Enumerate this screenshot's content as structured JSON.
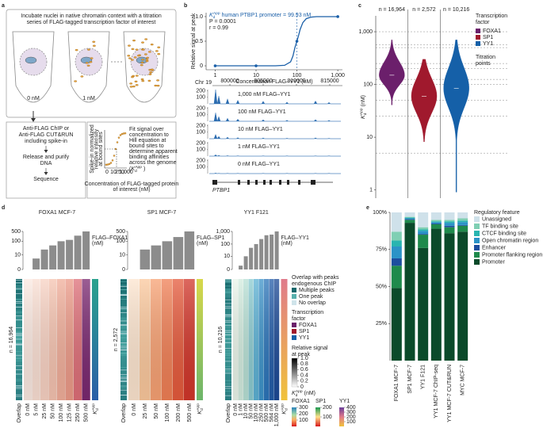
{
  "symbols": {
    "kd": {
      "base": "K",
      "sub": "d",
      "sup": "App"
    }
  },
  "panel_labels": [
    "a",
    "b",
    "c",
    "d",
    "e"
  ],
  "diagram": {
    "title_lines": [
      "Incubate nuclei in native chromatin context with a titration",
      "series of FLAG-tagged transcription factor of interest"
    ],
    "tube_labels": [
      "0 nM",
      "1 nM"
    ],
    "steps": [
      [
        "Anti-FLAG ChIP or",
        "Anti-FLAG CUT&RUN",
        "including spike-in"
      ],
      [
        "Release and purify",
        "DNA"
      ],
      [
        "Sequence"
      ]
    ],
    "fit_lines": [
      "Fit signal over",
      "concentration to",
      "Hill equation at",
      "bound sites to",
      "determine apparent",
      "binding affinities",
      "across the genome"
    ],
    "fit_paren": [
      "(",
      ")"
    ],
    "mini_ylabel": [
      "Spike-in normalized",
      "relative intensity",
      "at bound sites"
    ],
    "mini_xticks": [
      "0",
      "10",
      "250",
      "1,000"
    ],
    "mini_xlabel": [
      "Concentration of FLAG-tagged protein",
      "of interest (nM)"
    ]
  },
  "chart_data": [
    {
      "type": "line",
      "annotation": "human PTBP1 promoter = 99.93 nM",
      "stats": [
        "P = 0.0001",
        "r = 0.99"
      ],
      "ylabel": "Relative signal at peak",
      "xlabel": "Concentration FLAG–YY1 (nM)",
      "log_x": true,
      "xlim": [
        0.6,
        1300
      ],
      "xticks": [
        1,
        10,
        100,
        {
          "value": 1000,
          "label": "1,000"
        }
      ],
      "ylim": [
        -0.08,
        1.08
      ],
      "yticks": [
        0,
        0.5,
        {
          "value": 1,
          "label": "1.0"
        }
      ],
      "kd_value": 99.93,
      "series": [
        {
          "color": "#1a5fa8",
          "x": [
            1,
            10,
            30,
            50,
            70,
            80,
            90,
            99.93,
            110,
            120,
            140,
            170,
            220,
            300,
            500,
            1000
          ],
          "values": [
            0,
            0,
            0,
            0.01,
            0.08,
            0.2,
            0.38,
            0.5,
            0.62,
            0.74,
            0.88,
            0.96,
            0.99,
            1,
            1,
            1
          ]
        },
        {
          "color": "#1a5fa8",
          "marker": true,
          "x": [
            1,
            10,
            100,
            1000
          ],
          "values": [
            0,
            0,
            0.5,
            1
          ]
        }
      ]
    },
    {
      "type": "violin",
      "ylabel_unit": "(nM)",
      "log_y": true,
      "ylim": [
        0.7,
        2000
      ],
      "yticks": [
        1,
        10,
        100,
        {
          "value": 1000,
          "label": "1,000"
        }
      ],
      "legend_title": [
        "Transcription",
        "factor"
      ],
      "titration_title": [
        "Titration",
        "points"
      ],
      "titration_points": [
        5,
        25,
        50,
        100,
        125,
        200,
        250,
        500,
        564,
        1000
      ],
      "series": [
        {
          "name": "FOXA1",
          "color": "#6b1f6b",
          "n_label": "n = 16,964",
          "median": 150,
          "body": [
            90,
            300
          ],
          "range": [
            40,
            700
          ]
        },
        {
          "name": "SP1",
          "color": "#a0192d",
          "n_label": "n = 2,572",
          "median": 60,
          "body": [
            25,
            150
          ],
          "range": [
            8,
            300
          ]
        },
        {
          "name": "YY1",
          "color": "#1560a8",
          "n_label": "n = 10,216",
          "median": 85,
          "body": [
            30,
            250
          ],
          "range": [
            0.9,
            700
          ]
        }
      ]
    },
    {
      "type": "stacked_bar",
      "ylim": [
        0,
        100
      ],
      "yticks": [
        {
          "value": 25,
          "label": "25%"
        },
        {
          "value": 50,
          "label": "50%"
        },
        {
          "value": 75,
          "label": "75%"
        },
        {
          "value": 100,
          "label": "100%"
        }
      ],
      "legend_title": "Regulatory feature",
      "categories": [
        "FOXA1 MCF-7",
        "SP1 MCF-7",
        "YY1 F121",
        "YY1 MCF-7 ChIP-seq",
        "YY1 MCF-7 CUT&RUN",
        "MYC MCF-7"
      ],
      "series": [
        {
          "name": "Promoter",
          "color": "#0b4a2a",
          "values": [
            49,
            93,
            76,
            89,
            86,
            87
          ]
        },
        {
          "name": "Promoter flanking region",
          "color": "#1f8a4c",
          "values": [
            15,
            2,
            9,
            3,
            4,
            4
          ]
        },
        {
          "name": "Enhancer",
          "color": "#1d4e9e",
          "values": [
            5,
            0.5,
            0.5,
            0.5,
            1,
            0.5
          ]
        },
        {
          "name": "Open chromatin region",
          "color": "#2b93c7",
          "values": [
            8,
            0.5,
            2,
            1,
            2,
            2
          ]
        },
        {
          "name": "CTCF binding site",
          "color": "#29b5b0",
          "values": [
            4,
            0.5,
            1,
            0.5,
            1,
            1
          ]
        },
        {
          "name": "TF binding site",
          "color": "#7fcfb3",
          "values": [
            6,
            0.5,
            1.5,
            1,
            1,
            1.5
          ]
        },
        {
          "name": "Unassigned",
          "color": "#cfe1ea",
          "values": [
            13,
            3,
            10,
            5,
            5,
            4
          ]
        }
      ]
    }
  ],
  "tracks": {
    "chromosome": "Chr 19",
    "positions": [
      800000,
      805000,
      810000,
      815000
    ],
    "labels": [
      "1,000 nM FLAG–YY1",
      "100 nM FLAG–YY1",
      "10 nM FLAG–YY1",
      "1 nM FLAG–YY1",
      "0 nM FLAG–YY1"
    ],
    "ylim": [
      0,
      220
    ],
    "yticks": [
      100,
      200
    ],
    "gene": "PTBP1"
  },
  "heatmaps": {
    "first_column": "Overlap",
    "panels": [
      {
        "title": "FOXA1 MCF-7",
        "columns": [
          "0 nM",
          "5 nM",
          "25 nM",
          "50 nM",
          "100 nM",
          "125 nM",
          "250 nM",
          "500 nM"
        ],
        "concentrations": [
          0,
          5,
          25,
          50,
          100,
          125,
          250,
          500
        ],
        "bar_ylim": [
          0,
          500
        ],
        "bar_yticks": [
          0,
          10,
          100,
          500
        ],
        "bar_label": [
          "FLAG–FOXA1",
          "(nM)"
        ]
      },
      {
        "title": "SP1 MCF-7",
        "columns": [
          "0 nM",
          "25 nM",
          "50 nM",
          "100 nM",
          "200 nM",
          "500 nM"
        ],
        "concentrations": [
          0,
          25,
          50,
          100,
          200,
          500
        ],
        "bar_ylim": [
          0,
          500
        ],
        "bar_yticks": [
          0,
          10,
          100,
          500
        ],
        "bar_label": [
          "FLAG–SP1",
          "(nM)"
        ]
      },
      {
        "title": "YY1 F121",
        "columns": [
          "0 nM",
          "1 nM",
          "10 nM",
          "50 nM",
          "100 nM",
          "250 nM",
          "500 nM",
          "564 nM",
          "1,000 nM"
        ],
        "concentrations": [
          0,
          1,
          10,
          50,
          100,
          250,
          500,
          564,
          1000
        ],
        "bar_ylim": [
          0,
          1000
        ],
        "bar_yticks": [
          0,
          10,
          100,
          {
            "value": 1000,
            "label": "1,000"
          }
        ],
        "bar_label": [
          "FLAG–YY1",
          "(nM)"
        ]
      }
    ],
    "legend": {
      "overlap_title": [
        "Overlap with peaks",
        "endogenous ChIP"
      ],
      "overlap_items": [
        {
          "name": "Multiple peaks",
          "color": "#17686c"
        },
        {
          "name": "One peak",
          "color": "#58b0ad"
        },
        {
          "name": "No overlap",
          "color": "#cfe3ea"
        }
      ],
      "signal_title": [
        "Relative signal",
        "at peak"
      ],
      "signal_lim": [
        0,
        1
      ],
      "signal_ticks": [
        {
          "value": 1,
          "label": "1.0"
        },
        0.8,
        0.6,
        0.4,
        0.2,
        0
      ],
      "kd_unit": "(nM)",
      "kd_bars": [
        {
          "lim": [
            0,
            300
          ],
          "ticks": [
            100,
            200,
            300
          ]
        },
        {
          "lim": [
            0,
            200
          ],
          "ticks": [
            100,
            200
          ]
        },
        {
          "lim": [
            0,
            400
          ],
          "ticks": [
            100,
            200,
            300,
            400
          ]
        }
      ]
    }
  }
}
